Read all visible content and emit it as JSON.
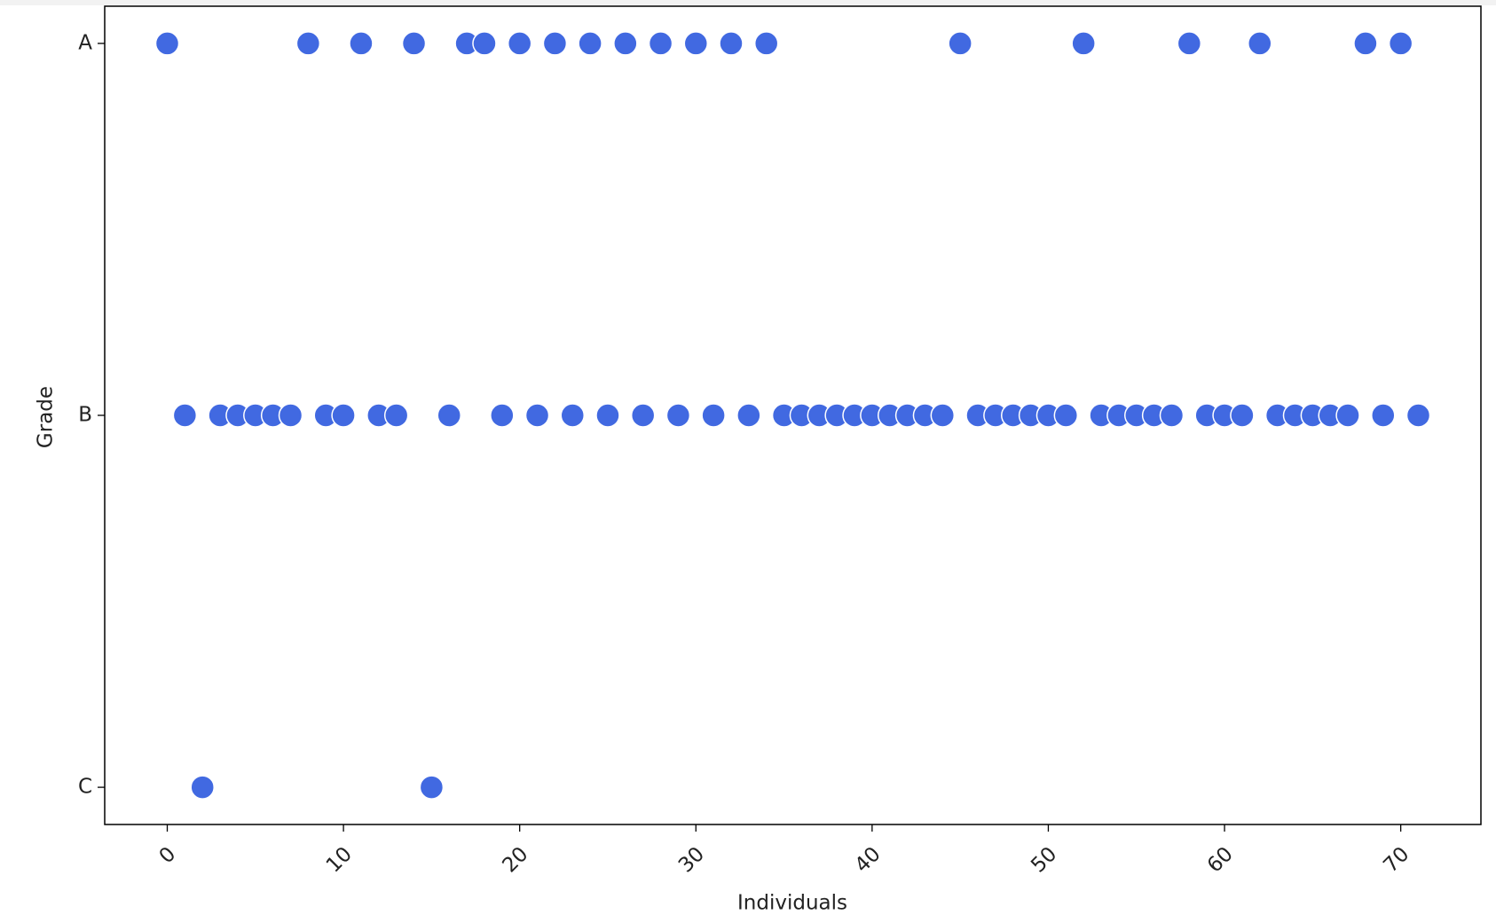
{
  "chart_data": {
    "type": "scatter",
    "x_label": "Individuals",
    "y_label": "Grade",
    "y_categories": [
      "A",
      "B",
      "C"
    ],
    "x": [
      0,
      1,
      2,
      3,
      4,
      5,
      6,
      7,
      8,
      9,
      10,
      11,
      12,
      13,
      14,
      15,
      16,
      17,
      18,
      19,
      20,
      21,
      22,
      23,
      24,
      25,
      26,
      27,
      28,
      29,
      30,
      31,
      32,
      33,
      34,
      35,
      36,
      37,
      38,
      39,
      40,
      41,
      42,
      43,
      44,
      45,
      46,
      47,
      48,
      49,
      50,
      51,
      52,
      53,
      54,
      55,
      56,
      57,
      58,
      59,
      60,
      61,
      62,
      63,
      64,
      65,
      66,
      67,
      68,
      69,
      70,
      71
    ],
    "values": [
      "A",
      "B",
      "C",
      "B",
      "B",
      "B",
      "B",
      "B",
      "A",
      "B",
      "B",
      "A",
      "B",
      "B",
      "A",
      "C",
      "B",
      "A",
      "A",
      "B",
      "A",
      "B",
      "A",
      "B",
      "A",
      "B",
      "A",
      "B",
      "A",
      "B",
      "A",
      "B",
      "A",
      "B",
      "A",
      "B",
      "B",
      "B",
      "B",
      "B",
      "B",
      "B",
      "B",
      "B",
      "B",
      "A",
      "B",
      "B",
      "B",
      "B",
      "B",
      "B",
      "A",
      "B",
      "B",
      "B",
      "B",
      "B",
      "A",
      "B",
      "B",
      "B",
      "A",
      "B",
      "B",
      "B",
      "B",
      "B",
      "A",
      "B",
      "A",
      "B"
    ],
    "color": "#4169e1",
    "xlim": [
      -3.55,
      74.55
    ],
    "xticks": [
      0,
      10,
      20,
      30,
      40,
      50,
      60,
      70
    ]
  }
}
